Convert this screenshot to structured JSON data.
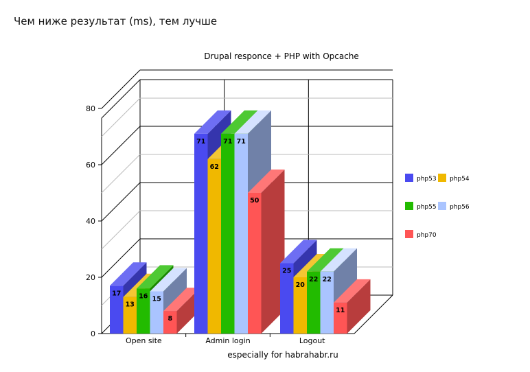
{
  "page": {
    "heading": "Чем ниже результат (ms), тем лучше"
  },
  "chart_data": {
    "type": "bar",
    "title": "Drupal responce + PHP with Opcache",
    "footer": "especially for habrahabr.ru",
    "categories": [
      "Open site",
      "Admin login",
      "Logout"
    ],
    "series": [
      {
        "name": "php53",
        "color": "#4a4af0",
        "values": [
          17,
          71,
          25
        ]
      },
      {
        "name": "php54",
        "color": "#f0b800",
        "values": [
          13,
          62,
          20
        ]
      },
      {
        "name": "php55",
        "color": "#22bb00",
        "values": [
          16,
          71,
          22
        ]
      },
      {
        "name": "php56",
        "color": "#aac4ff",
        "values": [
          15,
          71,
          22
        ]
      },
      {
        "name": "php70",
        "color": "#ff5555",
        "values": [
          8,
          50,
          11
        ]
      }
    ],
    "ylim": [
      0,
      80
    ],
    "yticks": [
      0,
      20,
      40,
      60,
      80
    ],
    "grid": true,
    "legend_position": "right",
    "style": "3d"
  }
}
